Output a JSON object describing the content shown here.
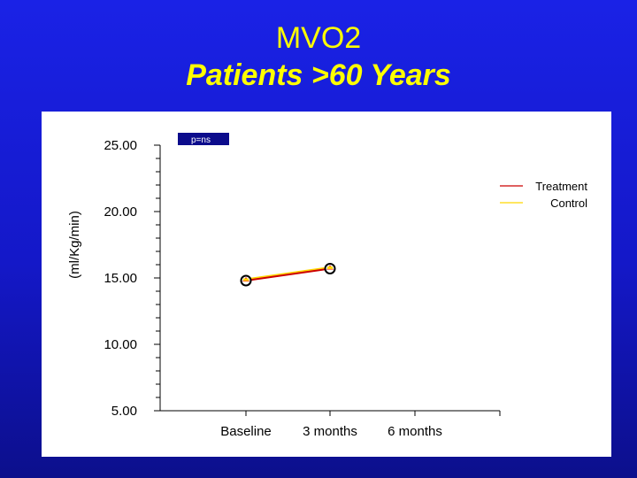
{
  "slide": {
    "title": "MVO2",
    "subtitle": "Patients >60 Years"
  },
  "chart_data": {
    "type": "line",
    "title": "MVO2",
    "subtitle": "Patients >60 Years",
    "ylabel": "(ml/Kg/min)",
    "xlabel": "",
    "categories": [
      "Baseline",
      "3 months",
      "6 months"
    ],
    "ylim": [
      5,
      25
    ],
    "yticks": [
      "25.00",
      "20.00",
      "15.00",
      "10.00",
      "5.00"
    ],
    "ytick_values": [
      25,
      20,
      15,
      10,
      5
    ],
    "annotation": "p=ns",
    "legend_position": "top-right",
    "series": [
      {
        "name": "Treatment",
        "color": "#cc0000",
        "values": [
          14.8,
          15.7,
          null
        ]
      },
      {
        "name": "Control",
        "color": "#ffd700",
        "values": [
          14.9,
          15.8,
          null
        ]
      }
    ],
    "colors": {
      "slide_background": "#1a22e6",
      "title": "#ffff00",
      "annotation_box": "#0c0c8c"
    }
  }
}
